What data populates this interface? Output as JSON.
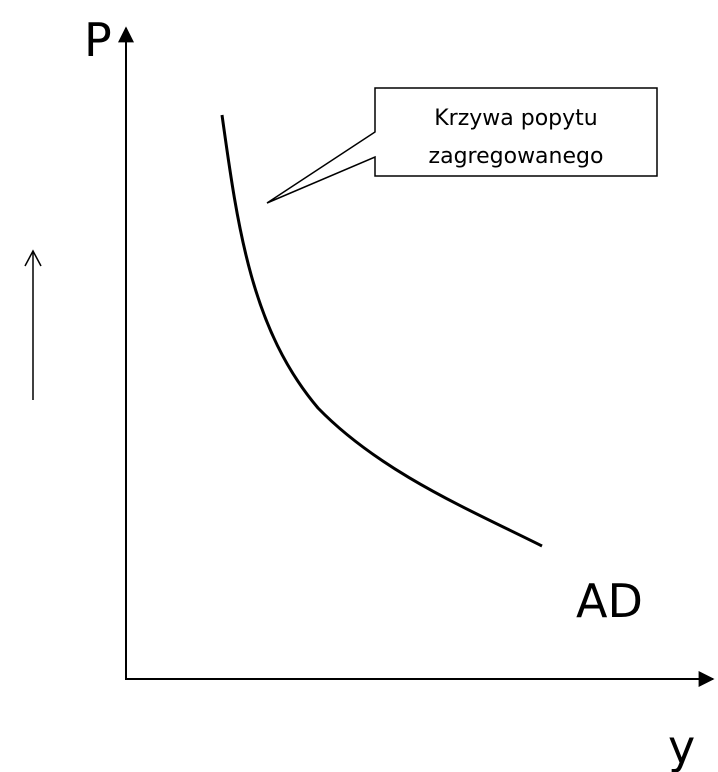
{
  "axes": {
    "y_label": "P",
    "x_label": "y"
  },
  "curve": {
    "label": "AD"
  },
  "callout": {
    "lines": [
      "Krzywa popytu",
      "zagregowanego"
    ]
  }
}
